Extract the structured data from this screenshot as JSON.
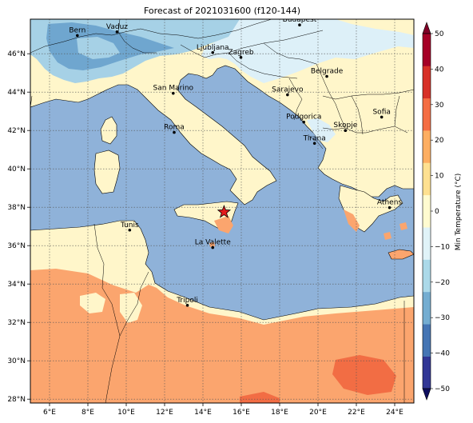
{
  "title": "Forecast of 2021031600 (f120-144)",
  "map": {
    "lon_range": [
      5,
      25
    ],
    "lat_range": [
      27.8,
      47.8
    ],
    "x_ticks": [
      "6°E",
      "8°E",
      "10°E",
      "12°E",
      "14°E",
      "16°E",
      "18°E",
      "20°E",
      "22°E",
      "24°E"
    ],
    "x_tick_values": [
      6,
      8,
      10,
      12,
      14,
      16,
      18,
      20,
      22,
      24
    ],
    "y_ticks": [
      "28°N",
      "30°N",
      "32°N",
      "34°N",
      "36°N",
      "38°N",
      "40°N",
      "42°N",
      "44°N",
      "46°N"
    ],
    "y_tick_values": [
      28,
      30,
      32,
      34,
      36,
      38,
      40,
      42,
      44,
      46
    ],
    "gridlines": true,
    "cities": [
      {
        "name": "Bern",
        "lon": 7.45,
        "lat": 46.95
      },
      {
        "name": "Vaduz",
        "lon": 9.52,
        "lat": 47.14
      },
      {
        "name": "Budapest",
        "lon": 19.04,
        "lat": 47.5
      },
      {
        "name": "Ljubljana",
        "lon": 14.51,
        "lat": 46.06
      },
      {
        "name": "Zagreb",
        "lon": 15.98,
        "lat": 45.81
      },
      {
        "name": "San Marino",
        "lon": 12.45,
        "lat": 43.94
      },
      {
        "name": "Belgrade",
        "lon": 20.46,
        "lat": 44.82
      },
      {
        "name": "Sarajevo",
        "lon": 18.41,
        "lat": 43.86
      },
      {
        "name": "Sofia",
        "lon": 23.32,
        "lat": 42.7
      },
      {
        "name": "Roma",
        "lon": 12.5,
        "lat": 41.9
      },
      {
        "name": "Podgorica",
        "lon": 19.26,
        "lat": 42.44
      },
      {
        "name": "Skopje",
        "lon": 21.43,
        "lat": 42.0
      },
      {
        "name": "Tirana",
        "lon": 19.82,
        "lat": 41.33
      },
      {
        "name": "Athens",
        "lon": 23.73,
        "lat": 37.98
      },
      {
        "name": "Tunis",
        "lon": 10.18,
        "lat": 36.81
      },
      {
        "name": "La Valette",
        "lon": 14.51,
        "lat": 35.9
      },
      {
        "name": "Tripoli",
        "lon": 13.19,
        "lat": 32.89
      }
    ],
    "marker": {
      "symbol": "star",
      "lon": 15.1,
      "lat": 37.75,
      "color": "#e31a1c"
    }
  },
  "colorbar": {
    "label": "Min Temperature (°C)",
    "ticks": [
      "50",
      "40",
      "30",
      "20",
      "10",
      "0",
      "−10",
      "−20",
      "−30",
      "−40",
      "−50"
    ],
    "tick_values": [
      50,
      40,
      30,
      20,
      10,
      0,
      -10,
      -20,
      -30,
      -40,
      -50
    ],
    "min": -50,
    "max": 50,
    "colors": [
      "#313695",
      "#4575b4",
      "#74add1",
      "#abd9e9",
      "#e0f3f8",
      "#fffbd0",
      "#fee090",
      "#fdae61",
      "#f46d43",
      "#d73027",
      "#a50026"
    ],
    "arrow_low_color": "#0d0d5e",
    "arrow_high_color": "#800026"
  },
  "palette": {
    "sea": "#8fb2d9",
    "land_warm": "#fff6ca",
    "land_hot": "#fba56e",
    "land_hotter": "#f26d44",
    "alps_cold": "#a6d1e6",
    "alps_colder": "#6fa6cf",
    "balkan_cool": "#ddf0f8"
  }
}
